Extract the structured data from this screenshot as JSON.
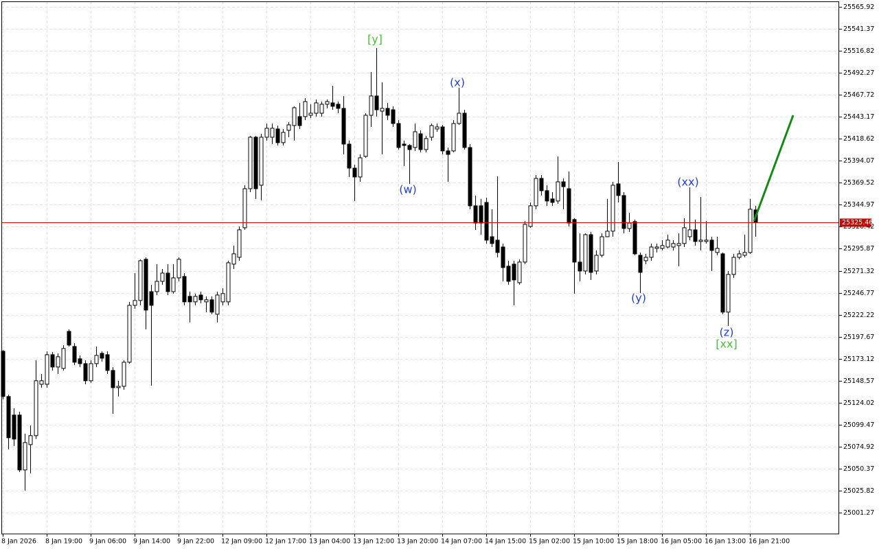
{
  "chart_data": {
    "type": "candlestick",
    "categories": [
      "8 Jan 2026",
      null,
      null,
      null,
      null,
      null,
      null,
      null,
      "8 Jan 19:00",
      null,
      null,
      null,
      null,
      null,
      null,
      null,
      "9 Jan 06:00",
      null,
      null,
      null,
      null,
      null,
      null,
      null,
      "9 Jan 14:00",
      null,
      null,
      null,
      null,
      null,
      null,
      null,
      "9 Jan 22:00",
      null,
      null,
      null,
      null,
      null,
      null,
      null,
      "12 Jan 09:00",
      null,
      null,
      null,
      null,
      null,
      null,
      null,
      "12 Jan 17:00",
      null,
      null,
      null,
      null,
      null,
      null,
      null,
      "13 Jan 04:00",
      null,
      null,
      null,
      null,
      null,
      null,
      null,
      "13 Jan 12:00",
      null,
      null,
      null,
      null,
      null,
      null,
      null,
      "13 Jan 20:00",
      null,
      null,
      null,
      null,
      null,
      null,
      null,
      "14 Jan 07:00",
      null,
      null,
      null,
      null,
      null,
      null,
      null,
      "14 Jan 15:00",
      null,
      null,
      null,
      null,
      null,
      null,
      null,
      "15 Jan 02:00",
      null,
      null,
      null,
      null,
      null,
      null,
      null,
      "15 Jan 10:00",
      null,
      null,
      null,
      null,
      null,
      null,
      null,
      "15 Jan 18:00",
      null,
      null,
      null,
      null,
      null,
      null,
      null,
      "16 Jan 05:00",
      null,
      null,
      null,
      null,
      null,
      null,
      null,
      "16 Jan 13:00",
      null,
      null,
      null,
      null,
      null,
      null,
      null,
      "16 Jan 21:00",
      null
    ],
    "open": [
      25181.4,
      25130.9,
      25110.2,
      25110.2,
      25048.9,
      25077.2,
      25087.2,
      25144.6,
      25144.6,
      25177.6,
      25163.8,
      25162.3,
      25203.6,
      25186.8,
      25173.0,
      25167.6,
      25148.5,
      25167.6,
      25179.1,
      25177.6,
      25160.0,
      25140.8,
      25142.3,
      25169.2,
      25232.7,
      25238.1,
      25284.1,
      25248.0,
      25248.0,
      25259.5,
      25268.7,
      25248.0,
      25263.4,
      25264.9,
      25242.7,
      25236.6,
      25244.2,
      25236.6,
      25238.9,
      25222.8,
      25236.6,
      25236.6,
      25278.7,
      25286.3,
      25319.3,
      25362.9,
      25420.4,
      25366.8,
      25420.4,
      25420.4,
      25429.6,
      25414.3,
      25428.1,
      25433.4,
      25443.4,
      25443.4,
      25444.9,
      25447.2,
      25447.2,
      25457.2,
      25458.7,
      25457.2,
      25452.6,
      25412.7,
      25385.9,
      25376.0,
      25399.0,
      25444.9,
      25466.4,
      25449.5,
      25452.6,
      25451.0,
      25435.7,
      25412.7,
      25411.2,
      25408.9,
      25424.2,
      25406.6,
      25420.4,
      25429.6,
      25431.9,
      25405.1,
      25405.1,
      25435.7,
      25447.2,
      25408.9,
      25343.8,
      25343.8,
      25347.6,
      25309.3,
      25305.5,
      25297.8,
      25276.4,
      25278.7,
      25258.0,
      25281.0,
      25320.8,
      25343.8,
      25374.4,
      25360.7,
      25351.5,
      25349.2,
      25370.6,
      25362.9,
      25328.5,
      25281.0,
      25271.0,
      25311.6,
      25271.0,
      25288.6,
      25309.3,
      25315.5,
      25368.3,
      25355.3,
      25318.5,
      25326.2,
      25288.6,
      25282.5,
      25286.3,
      25296.3,
      25296.3,
      25297.8,
      25297.8,
      25299.4,
      25301.7,
      25309.3,
      25317.0,
      25304.0,
      25304.0,
      25305.5,
      25291.7,
      25290.2,
      25225.1,
      25267.2,
      25286.3,
      25288.6,
      25291.7,
      25339.2
    ],
    "high": [
      25182.9,
      25133.1,
      25117.8,
      25114.0,
      25089.5,
      25098.7,
      25171.4,
      25156.1,
      25181.4,
      25180.6,
      25179.1,
      25188.3,
      25205.9,
      25190.6,
      25176.8,
      25171.4,
      25171.4,
      25186.8,
      25181.4,
      25181.4,
      25163.8,
      25148.5,
      25171.4,
      25236.6,
      25268.7,
      25284.1,
      25286.3,
      25255.7,
      25278.7,
      25273.3,
      25278.7,
      25278.7,
      25286.3,
      25268.7,
      25248.0,
      25245.8,
      25248.0,
      25242.7,
      25242.7,
      25248.0,
      25251.9,
      25282.5,
      25299.4,
      25320.8,
      25366.8,
      25421.9,
      25421.9,
      25424.2,
      25435.7,
      25435.7,
      25433.4,
      25429.6,
      25437.3,
      25454.9,
      25458.7,
      25464.1,
      25457.2,
      25462.5,
      25460.2,
      25462.5,
      25477.8,
      25460.2,
      25466.4,
      25416.6,
      25389.8,
      25401.2,
      25447.2,
      25493.2,
      25520.0,
      25481.7,
      25458.7,
      25454.9,
      25439.5,
      25416.6,
      25412.7,
      25435.7,
      25428.1,
      25421.9,
      25435.7,
      25435.7,
      25434.2,
      25408.9,
      25439.5,
      25475.6,
      25451.0,
      25412.7,
      25355.3,
      25351.5,
      25353.0,
      25340.0,
      25376.7,
      25301.7,
      25282.5,
      25282.5,
      25284.1,
      25326.9,
      25347.6,
      25378.3,
      25378.3,
      25366.8,
      25359.1,
      25399.0,
      25374.4,
      25382.1,
      25330.0,
      25313.2,
      25313.2,
      25314.7,
      25294.0,
      25313.2,
      25351.5,
      25370.6,
      25392.8,
      25359.1,
      25336.1,
      25328.5,
      25291.7,
      25290.2,
      25301.7,
      25301.7,
      25305.5,
      25311.6,
      25305.5,
      25313.2,
      25330.0,
      25364.5,
      25328.5,
      25353.8,
      25326.9,
      25309.3,
      25309.3,
      25291.7,
      25271.0,
      25290.2,
      25294.0,
      25311.6,
      25351.5,
      25343.8
    ],
    "low": [
      25127.8,
      25071.9,
      25075.7,
      25046.6,
      25025.9,
      25045.1,
      25083.4,
      25140.8,
      25140.8,
      25160.0,
      25156.1,
      25160.0,
      25186.8,
      25166.1,
      25163.8,
      25144.6,
      25146.2,
      25163.8,
      25169.9,
      25156.1,
      25111.7,
      25130.9,
      25138.5,
      25167.6,
      25228.9,
      25232.7,
      25205.9,
      25143.1,
      25244.2,
      25255.7,
      25244.2,
      25245.8,
      25259.5,
      25232.7,
      25213.6,
      25232.7,
      25235.0,
      25225.1,
      25222.8,
      25213.6,
      25232.7,
      25232.7,
      25273.3,
      25282.5,
      25317.0,
      25359.1,
      25351.5,
      25349.9,
      25416.6,
      25412.7,
      25411.2,
      25411.2,
      25420.4,
      25416.6,
      25429.6,
      25439.5,
      25441.8,
      25443.4,
      25443.4,
      25452.6,
      25451.0,
      25447.2,
      25401.2,
      25376.0,
      25349.2,
      25370.6,
      25397.4,
      25431.9,
      25443.4,
      25401.2,
      25439.5,
      25431.9,
      25406.6,
      25388.2,
      25368.3,
      25405.1,
      25403.5,
      25403.5,
      25416.6,
      25426.5,
      25401.2,
      25370.6,
      25403.5,
      25434.2,
      25406.6,
      25340.0,
      25317.0,
      25311.6,
      25301.7,
      25297.8,
      25286.3,
      25259.5,
      25255.7,
      25232.7,
      25255.7,
      25278.7,
      25319.3,
      25340.0,
      25355.3,
      25343.8,
      25343.8,
      25346.1,
      25340.0,
      25320.8,
      25245.8,
      25259.5,
      25267.2,
      25261.1,
      25267.2,
      25286.3,
      25313.2,
      25309.3,
      25347.6,
      25313.2,
      25314.7,
      25288.6,
      25246.5,
      25278.7,
      25282.5,
      25291.7,
      25294.0,
      25296.3,
      25294.0,
      25276.4,
      25297.8,
      25305.5,
      25299.4,
      25294.0,
      25301.7,
      25271.0,
      25288.6,
      25222.8,
      25209.7,
      25263.4,
      25284.1,
      25286.3,
      25290.2,
      25309.3
    ],
    "close": [
      25130.9,
      25084.9,
      25083.4,
      25048.9,
      25079.5,
      25087.2,
      25148.5,
      25148.5,
      25177.6,
      25163.8,
      25175.3,
      25184.5,
      25188.3,
      25169.2,
      25167.6,
      25148.5,
      25167.6,
      25176.8,
      25173.7,
      25160.0,
      25140.8,
      25142.3,
      25169.2,
      25232.7,
      25238.1,
      25282.5,
      25227.4,
      25232.7,
      25259.5,
      25268.7,
      25248.0,
      25263.4,
      25284.1,
      25236.6,
      25236.6,
      25242.7,
      25238.9,
      25238.9,
      25225.1,
      25244.2,
      25245.8,
      25280.2,
      25290.2,
      25317.0,
      25362.9,
      25420.4,
      25362.9,
      25420.4,
      25430.4,
      25430.4,
      25414.3,
      25425.8,
      25434.2,
      25453.3,
      25433.4,
      25460.2,
      25447.2,
      25458.7,
      25457.2,
      25460.2,
      25454.9,
      25452.6,
      25412.7,
      25385.9,
      25376.0,
      25397.4,
      25444.9,
      25466.4,
      25451.0,
      25452.6,
      25444.9,
      25435.7,
      25408.9,
      25411.2,
      25406.6,
      25426.5,
      25406.6,
      25418.9,
      25433.4,
      25431.9,
      25405.1,
      25401.2,
      25435.7,
      25447.2,
      25408.9,
      25343.8,
      25324.6,
      25324.6,
      25305.5,
      25301.7,
      25291.7,
      25274.9,
      25259.5,
      25261.1,
      25281.0,
      25323.1,
      25343.8,
      25374.4,
      25360.7,
      25349.2,
      25347.6,
      25370.6,
      25365.2,
      25324.6,
      25281.0,
      25271.0,
      25311.6,
      25269.5,
      25288.6,
      25309.3,
      25315.5,
      25366.8,
      25355.3,
      25318.5,
      25324.6,
      25290.2,
      25269.5,
      25286.3,
      25297.8,
      25297.8,
      25299.4,
      25305.5,
      25301.7,
      25301.7,
      25319.3,
      25317.0,
      25304.0,
      25305.5,
      25305.5,
      25294.0,
      25296.3,
      25225.1,
      25267.2,
      25286.3,
      25290.2,
      25291.7,
      25340.0,
      25325.46
    ],
    "up_color": "#ffffff",
    "down_color": "#000000",
    "ylim": [
      24977.52,
      25572.05
    ],
    "yticks": [
      25001.27,
      25025.82,
      25050.37,
      25074.92,
      25099.47,
      25124.02,
      25148.57,
      25173.12,
      25197.67,
      25222.22,
      25246.77,
      25271.32,
      25295.87,
      25320.42,
      25344.97,
      25369.52,
      25394.07,
      25418.62,
      25443.17,
      25467.72,
      25492.27,
      25516.82,
      25541.37,
      25565.92
    ],
    "grid": true,
    "current_price": 25325.46,
    "current_price_color": "#cc0000",
    "annotations": [
      {
        "text": "[y]",
        "color": "#44c038"
      },
      {
        "text": "(x)",
        "color": "#1f3fdb"
      },
      {
        "text": "(w)",
        "color": "#1f3fdb"
      },
      {
        "text": "(xx)",
        "color": "#1f3fdb"
      },
      {
        "text": "(y)",
        "color": "#1f3fdb"
      },
      {
        "text": "(z)",
        "color": "#1f3fdb"
      },
      {
        "text": "[xx]",
        "color": "#44c038"
      }
    ]
  }
}
